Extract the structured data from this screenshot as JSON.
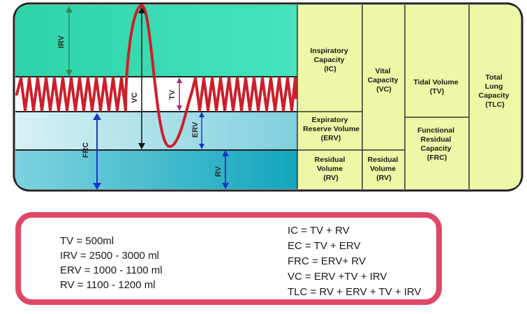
{
  "diagram": {
    "labels": {
      "irv": "IRV",
      "vc": "VC",
      "tv": "TV",
      "erv": "ERV",
      "frc": "FRC",
      "rv": "RV"
    },
    "table": {
      "ic": [
        "Inspiratory",
        "Capacity",
        "(IC)"
      ],
      "erv": [
        "Expiratory",
        "Reserve Volume",
        "(ERV)"
      ],
      "rv": [
        "Residual",
        "Volume",
        "(RV)"
      ],
      "vc": [
        "Vital",
        "Capacity",
        "(VC)"
      ],
      "rv2": [
        "Residual",
        "Volume",
        "(RV)"
      ],
      "tv": [
        "Tidal Volume",
        "(TV)"
      ],
      "frc": [
        "Functional",
        "Residual",
        "Capacity",
        "(FRC)"
      ],
      "tlc": [
        "Total",
        "Lung",
        "Capacity",
        "(TLC)"
      ]
    },
    "colors": {
      "irv_zone": "#3fe0b3",
      "frc_zone": "#bfe6ee",
      "rv_zone": "#23b3c6",
      "table": "#eef7a6",
      "wave": "#cc1f2a",
      "border": "#222222",
      "arrow_blue": "#1a35c8",
      "arrow_green": "#2e8b57",
      "arrow_purple": "#a0307a"
    }
  },
  "info": {
    "values": [
      "TV = 500ml",
      "IRV = 2500 - 3000 ml",
      "ERV = 1000 - 1100 ml",
      "RV  = 1100 - 1200 ml"
    ],
    "equations": [
      "IC = TV + RV",
      "EC = TV + ERV",
      "FRC = ERV+ RV",
      "VC =  ERV +TV + IRV",
      "TLC = RV + ERV + TV + IRV"
    ],
    "border_color": "#e04867"
  }
}
